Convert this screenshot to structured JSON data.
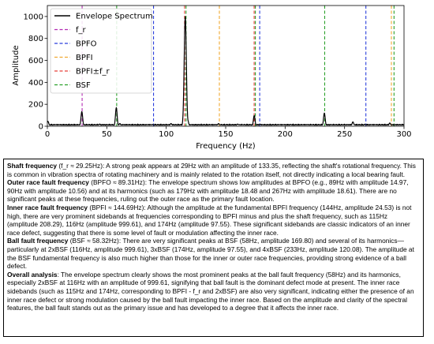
{
  "chart_data": {
    "type": "line",
    "title": "",
    "xlabel": "Frequency (Hz)",
    "ylabel": "Amplitude",
    "xlim": [
      0,
      300
    ],
    "ylim": [
      0,
      1100
    ],
    "xticks": [
      0,
      50,
      100,
      150,
      200,
      250,
      300
    ],
    "yticks": [
      0,
      200,
      400,
      600,
      800,
      1000
    ],
    "grid": false,
    "legend_position": "top-left",
    "legend": [
      {
        "label": "Envelope Spectrum",
        "style": "solid",
        "color": "#000000"
      },
      {
        "label": "f_r",
        "style": "dashed",
        "color": "#b22ab2"
      },
      {
        "label": "BPFO",
        "style": "dashed",
        "color": "#2b3fdc"
      },
      {
        "label": "BPFI",
        "style": "dashed",
        "color": "#f0a830"
      },
      {
        "label": "BPFI±f_r",
        "style": "dashed",
        "color": "#e8413a"
      },
      {
        "label": "BSF",
        "style": "dashed",
        "color": "#2aa02a"
      }
    ],
    "series": [
      {
        "name": "Envelope Spectrum",
        "baseline": 10,
        "peaks": [
          {
            "x": 0.5,
            "y": 45
          },
          {
            "x": 29,
            "y": 133.35
          },
          {
            "x": 44,
            "y": 20
          },
          {
            "x": 58,
            "y": 169.8
          },
          {
            "x": 61,
            "y": 25
          },
          {
            "x": 89,
            "y": 14.97
          },
          {
            "x": 90,
            "y": 10.56
          },
          {
            "x": 104,
            "y": 25
          },
          {
            "x": 115,
            "y": 208.29
          },
          {
            "x": 116,
            "y": 999.61
          },
          {
            "x": 118,
            "y": 60
          },
          {
            "x": 144,
            "y": 24.53
          },
          {
            "x": 160,
            "y": 20
          },
          {
            "x": 174,
            "y": 97.55
          },
          {
            "x": 179,
            "y": 18.48
          },
          {
            "x": 205,
            "y": 15
          },
          {
            "x": 233,
            "y": 120.08
          },
          {
            "x": 257,
            "y": 40
          },
          {
            "x": 267,
            "y": 18.61
          },
          {
            "x": 288,
            "y": 30
          }
        ]
      }
    ],
    "reference_lines": [
      {
        "group": "f_r",
        "x": 29.25,
        "color": "#b22ab2"
      },
      {
        "group": "BPFO",
        "x": 89.31,
        "color": "#2b3fdc"
      },
      {
        "group": "BPFO",
        "x": 178.62,
        "color": "#2b3fdc"
      },
      {
        "group": "BPFO",
        "x": 267.93,
        "color": "#2b3fdc"
      },
      {
        "group": "BPFI",
        "x": 144.69,
        "color": "#f0a830"
      },
      {
        "group": "BPFI",
        "x": 289.38,
        "color": "#f0a830"
      },
      {
        "group": "BPFI±f_r",
        "x": 115.44,
        "color": "#e8413a"
      },
      {
        "group": "BPFI±f_r",
        "x": 173.94,
        "color": "#e8413a"
      },
      {
        "group": "BSF",
        "x": 58.32,
        "color": "#2aa02a"
      },
      {
        "group": "BSF",
        "x": 116.64,
        "color": "#2aa02a"
      },
      {
        "group": "BSF",
        "x": 174.96,
        "color": "#2aa02a"
      },
      {
        "group": "BSF",
        "x": 233.28,
        "color": "#2aa02a"
      },
      {
        "group": "BSF",
        "x": 291.6,
        "color": "#2aa02a"
      }
    ]
  },
  "analysis": {
    "shaft": {
      "heading": "Shaft frequency",
      "text": " (f_r ≈ 29.25Hz): A strong peak appears at 29Hz with an amplitude of 133.35, reflecting the shaft's rotational frequency. This is common in vibration spectra of rotating machinery and is mainly related to the rotation itself, not directly indicating a local bearing fault."
    },
    "outer": {
      "heading": "Outer race fault frequency",
      "text": " (BPFO ≈ 89.31Hz): The envelope spectrum shows low amplitudes at BPFO (e.g., 89Hz with amplitude 14.97, 90Hz with amplitude 10.56) and at its harmonics (such as 179Hz with amplitude 18.48 and 267Hz with amplitude 18.61). There are no significant peaks at these frequencies, ruling out the outer race as the primary fault location."
    },
    "inner": {
      "heading": "Inner race fault frequency",
      "text": " (BPFI ≈ 144.69Hz): Although the amplitude at the fundamental BPFI frequency (144Hz, amplitude 24.53) is not high, there are very prominent sidebands at frequencies corresponding to BPFI minus and plus the shaft frequency, such as 115Hz (amplitude 208.29), 116Hz (amplitude 999.61), and 174Hz (amplitude 97.55). These significant sidebands are classic indicators of an inner race defect, suggesting that there is some level of fault or modulation affecting the inner race."
    },
    "ball": {
      "heading": "Ball fault frequency",
      "text": " (BSF ≈ 58.32Hz): There are very significant peaks at BSF (58Hz, amplitude 169.80) and several of its harmonics—particularly at 2xBSF (116Hz, amplitude 999.61), 3xBSF (174Hz, amplitude 97.55), and 4xBSF (233Hz, amplitude 120.08). The amplitude at the BSF fundamental frequency is also much higher than those for the inner or outer race frequencies, providing strong evidence of a ball defect."
    },
    "overall": {
      "heading": "Overall analysis",
      "text": ": The envelope spectrum clearly shows the most prominent peaks at the ball fault frequency (58Hz) and its harmonics, especially 2xBSF at 116Hz with an amplitude of 999.61, signifying that ball fault is the dominant defect mode at present. The inner race sidebands (such as 115Hz and 174Hz, corresponding to BPFI - f_r and 2xBSF) are also very significant, indicating either the presence of an inner race defect or strong modulation caused by the ball fault impacting the inner race. Based on the amplitude and clarity of the spectral features, the ball fault stands out as the primary issue and has developed to a degree that it affects the inner race."
    }
  }
}
